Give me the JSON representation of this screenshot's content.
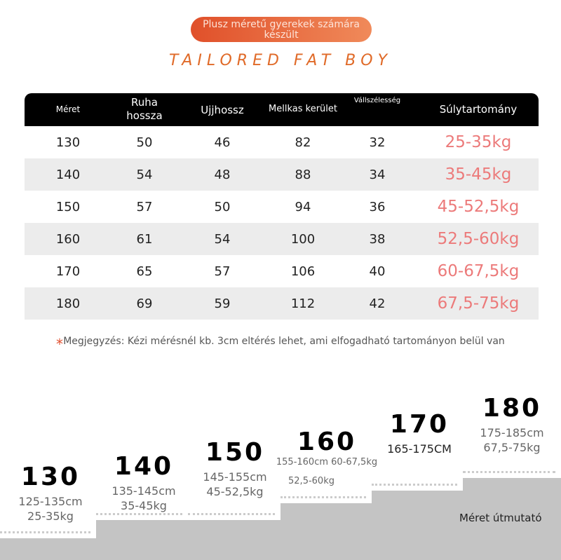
{
  "header": {
    "badge": "Plusz méretű gyerekek számára készült",
    "title": "TAILORED FAT BOY"
  },
  "table": {
    "headers": [
      "Méret",
      "Ruha hossza",
      "Ujjhossz",
      "Mellkas kerület",
      "Vállszélesség",
      "Súlytartomány"
    ],
    "rows": [
      [
        130,
        50,
        46,
        82,
        32,
        "25-35kg"
      ],
      [
        140,
        54,
        48,
        88,
        34,
        "35-45kg"
      ],
      [
        150,
        57,
        50,
        94,
        36,
        "45-52,5kg"
      ],
      [
        160,
        61,
        54,
        100,
        38,
        "52,5-60kg"
      ],
      [
        170,
        65,
        57,
        106,
        40,
        "60-67,5kg"
      ],
      [
        180,
        69,
        59,
        112,
        42,
        "67,5-75kg"
      ]
    ]
  },
  "note": {
    "mark": "*",
    "text": "Megjegyzés: Kézi mérésnél kb. 3cm eltérés lehet, ami elfogadható tartományon belül van"
  },
  "steps": [
    {
      "size": "130",
      "lines": [
        "125-135cm",
        "25-35kg"
      ]
    },
    {
      "size": "140",
      "lines": [
        "135-145cm",
        "35-45kg"
      ]
    },
    {
      "size": "150",
      "lines": [
        "145-155cm",
        "45-52,5kg"
      ]
    },
    {
      "size": "160",
      "lines": [
        "155-160cm 60-67,5kg",
        "52,5-60kg"
      ]
    },
    {
      "size": "170",
      "lines": [
        "165-175CM"
      ]
    },
    {
      "size": "180",
      "lines": [
        "175-185cm",
        "67,5-75kg"
      ]
    }
  ],
  "footer": {
    "label": "Méret útmutató"
  }
}
